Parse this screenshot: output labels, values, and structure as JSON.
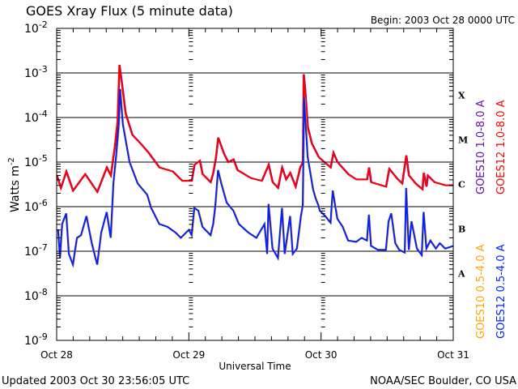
{
  "chart_data": {
    "type": "line",
    "title": "GOES Xray Flux (5 minute data)",
    "begin_label": "Begin:  2003 Oct 28 0000 UTC",
    "xlabel": "Universal Time",
    "ylabel": "Watts m",
    "ylabel_sup": "-2",
    "x_unit": "hours since 2003 Oct 28 0000 UTC",
    "xlim": [
      0,
      72
    ],
    "ylim_log10": [
      -9,
      -2
    ],
    "yscale": "log",
    "x_ticks": [
      {
        "value": 0,
        "label": "Oct 28"
      },
      {
        "value": 24,
        "label": "Oct 29"
      },
      {
        "value": 48,
        "label": "Oct 30"
      },
      {
        "value": 72,
        "label": "Oct 31"
      }
    ],
    "y_ticks": [
      {
        "exp": -2,
        "label": "10",
        "sup": "-2"
      },
      {
        "exp": -3,
        "label": "10",
        "sup": "-3"
      },
      {
        "exp": -4,
        "label": "10",
        "sup": "-4"
      },
      {
        "exp": -5,
        "label": "10",
        "sup": "-5"
      },
      {
        "exp": -6,
        "label": "10",
        "sup": "-6"
      },
      {
        "exp": -7,
        "label": "10",
        "sup": "-7"
      },
      {
        "exp": -8,
        "label": "10",
        "sup": "-8"
      },
      {
        "exp": -9,
        "label": "10",
        "sup": "-9"
      }
    ],
    "flare_classes": [
      {
        "label": "X",
        "exp": -3.5
      },
      {
        "label": "M",
        "exp": -4.5
      },
      {
        "label": "C",
        "exp": -5.5
      },
      {
        "label": "B",
        "exp": -6.5
      },
      {
        "label": "A",
        "exp": -7.5
      }
    ],
    "grid_lines_log10": [
      -3,
      -4,
      -5,
      -6,
      -7,
      -8
    ],
    "legend_position": "right",
    "series": [
      {
        "name": "GOES10 1.0-8.0 A",
        "color": "#6a0dad",
        "same_as": "GOES12 1.0-8.0 A"
      },
      {
        "name": "GOES12 1.0-8.0 A",
        "color": "#ff0000",
        "points_log10": [
          [
            0,
            -5.3
          ],
          [
            0.73,
            -5.58
          ],
          [
            1.72,
            -5.21
          ],
          [
            2.94,
            -5.64
          ],
          [
            5.14,
            -5.27
          ],
          [
            7.35,
            -5.67
          ],
          [
            9.06,
            -5.12
          ],
          [
            9.8,
            -5.3
          ],
          [
            10.53,
            -4.64
          ],
          [
            11.02,
            -4.09
          ],
          [
            11.36,
            -2.82
          ],
          [
            11.76,
            -3.18
          ],
          [
            12.49,
            -3.91
          ],
          [
            13.71,
            -4.39
          ],
          [
            15.18,
            -4.58
          ],
          [
            16.65,
            -4.79
          ],
          [
            18.61,
            -5.12
          ],
          [
            21.06,
            -5.21
          ],
          [
            22.78,
            -5.42
          ],
          [
            24.49,
            -5.42
          ],
          [
            24.98,
            -5.06
          ],
          [
            25.96,
            -4.97
          ],
          [
            26.45,
            -5.27
          ],
          [
            27.92,
            -5.45
          ],
          [
            28.41,
            -5.24
          ],
          [
            28.9,
            -4.88
          ],
          [
            29.28,
            -4.45
          ],
          [
            30.37,
            -4.82
          ],
          [
            31.1,
            -5.0
          ],
          [
            32.07,
            -4.94
          ],
          [
            32.8,
            -5.18
          ],
          [
            35.26,
            -5.36
          ],
          [
            37.21,
            -5.42
          ],
          [
            38.45,
            -5.06
          ],
          [
            39.18,
            -5.45
          ],
          [
            40.16,
            -5.58
          ],
          [
            40.89,
            -5.12
          ],
          [
            41.63,
            -5.39
          ],
          [
            42.36,
            -5.24
          ],
          [
            43.35,
            -5.55
          ],
          [
            44.18,
            -5.12
          ],
          [
            44.67,
            -5.0
          ],
          [
            44.82,
            -3.03
          ],
          [
            45.07,
            -3.36
          ],
          [
            45.55,
            -4.21
          ],
          [
            46.29,
            -4.58
          ],
          [
            47.02,
            -4.76
          ],
          [
            47.51,
            -4.88
          ],
          [
            47.99,
            -4.94
          ],
          [
            49.71,
            -5.12
          ],
          [
            50.21,
            -4.79
          ],
          [
            50.94,
            -5.0
          ],
          [
            52.9,
            -5.27
          ],
          [
            54.37,
            -5.39
          ],
          [
            56.32,
            -5.39
          ],
          [
            56.67,
            -5.12
          ],
          [
            57.06,
            -5.45
          ],
          [
            59.76,
            -5.55
          ],
          [
            60.35,
            -5.15
          ],
          [
            61.71,
            -5.36
          ],
          [
            62.7,
            -5.48
          ],
          [
            63.43,
            -4.85
          ],
          [
            63.92,
            -5.3
          ],
          [
            65.14,
            -5.48
          ],
          [
            66.37,
            -5.61
          ],
          [
            66.61,
            -5.24
          ],
          [
            67.1,
            -5.55
          ],
          [
            67.34,
            -5.3
          ],
          [
            68.57,
            -5.45
          ],
          [
            70.53,
            -5.52
          ],
          [
            72,
            -5.52
          ]
        ]
      },
      {
        "name": "GOES10 0.5-4.0 A",
        "color": "#ffa500",
        "same_as": "GOES12 0.5-4.0 A"
      },
      {
        "name": "GOES12 0.5-4.0 A",
        "color": "#0022ff",
        "points_log10": [
          [
            0.25,
            -6.51
          ],
          [
            0.59,
            -7.15
          ],
          [
            0.98,
            -6.39
          ],
          [
            1.72,
            -6.15
          ],
          [
            2.2,
            -7.06
          ],
          [
            2.94,
            -7.3
          ],
          [
            3.67,
            -6.7
          ],
          [
            4.41,
            -6.64
          ],
          [
            5.39,
            -6.21
          ],
          [
            6.36,
            -6.82
          ],
          [
            7.35,
            -7.3
          ],
          [
            8.08,
            -6.58
          ],
          [
            9.07,
            -6.12
          ],
          [
            9.8,
            -6.7
          ],
          [
            10.29,
            -5.48
          ],
          [
            10.77,
            -4.88
          ],
          [
            11.27,
            -4.15
          ],
          [
            11.51,
            -3.36
          ],
          [
            12.0,
            -4.15
          ],
          [
            13.22,
            -5.0
          ],
          [
            14.69,
            -5.48
          ],
          [
            16.41,
            -5.73
          ],
          [
            17.15,
            -6.03
          ],
          [
            18.62,
            -6.39
          ],
          [
            20.09,
            -6.45
          ],
          [
            21.56,
            -6.58
          ],
          [
            22.53,
            -6.7
          ],
          [
            24.0,
            -6.52
          ],
          [
            24.49,
            -6.64
          ],
          [
            24.98,
            -6.03
          ],
          [
            25.71,
            -6.09
          ],
          [
            26.45,
            -6.45
          ],
          [
            27.92,
            -6.64
          ],
          [
            28.4,
            -6.39
          ],
          [
            28.8,
            -5.97
          ],
          [
            29.29,
            -5.18
          ],
          [
            29.87,
            -5.48
          ],
          [
            30.86,
            -5.91
          ],
          [
            32.08,
            -6.09
          ],
          [
            33.06,
            -6.39
          ],
          [
            34.78,
            -6.58
          ],
          [
            36.25,
            -6.7
          ],
          [
            37.72,
            -6.39
          ],
          [
            38.2,
            -7.06
          ],
          [
            38.45,
            -5.94
          ],
          [
            39.18,
            -6.94
          ],
          [
            40.16,
            -7.15
          ],
          [
            40.89,
            -6.03
          ],
          [
            41.39,
            -7.06
          ],
          [
            42.36,
            -6.21
          ],
          [
            42.85,
            -7.06
          ],
          [
            43.6,
            -6.94
          ],
          [
            44.33,
            -6.21
          ],
          [
            44.67,
            -5.97
          ],
          [
            44.92,
            -3.55
          ],
          [
            45.55,
            -4.88
          ],
          [
            46.54,
            -5.61
          ],
          [
            47.02,
            -5.82
          ],
          [
            47.51,
            -5.97
          ],
          [
            47.76,
            -6.09
          ],
          [
            48.74,
            -6.21
          ],
          [
            49.71,
            -6.36
          ],
          [
            50.11,
            -5.64
          ],
          [
            50.94,
            -6.27
          ],
          [
            51.91,
            -6.45
          ],
          [
            52.9,
            -6.76
          ],
          [
            54.37,
            -6.79
          ],
          [
            55.35,
            -6.7
          ],
          [
            56.32,
            -6.76
          ],
          [
            56.67,
            -6.18
          ],
          [
            57.06,
            -6.88
          ],
          [
            58.29,
            -6.97
          ],
          [
            59.76,
            -6.97
          ],
          [
            60.24,
            -6.33
          ],
          [
            60.73,
            -6.15
          ],
          [
            61.46,
            -6.82
          ],
          [
            62.19,
            -6.97
          ],
          [
            63.18,
            -7.03
          ],
          [
            63.43,
            -5.58
          ],
          [
            63.92,
            -6.97
          ],
          [
            64.4,
            -6.33
          ],
          [
            65.39,
            -6.94
          ],
          [
            66.27,
            -7.09
          ],
          [
            66.61,
            -6.12
          ],
          [
            67.1,
            -6.94
          ],
          [
            67.84,
            -6.76
          ],
          [
            68.82,
            -6.94
          ],
          [
            69.55,
            -6.82
          ],
          [
            70.53,
            -6.94
          ],
          [
            72,
            -6.88
          ]
        ]
      }
    ]
  },
  "footer": {
    "updated": "Updated 2003 Oct 30 23:56:05 UTC",
    "source": "NOAA/SEC Boulder, CO USA"
  }
}
